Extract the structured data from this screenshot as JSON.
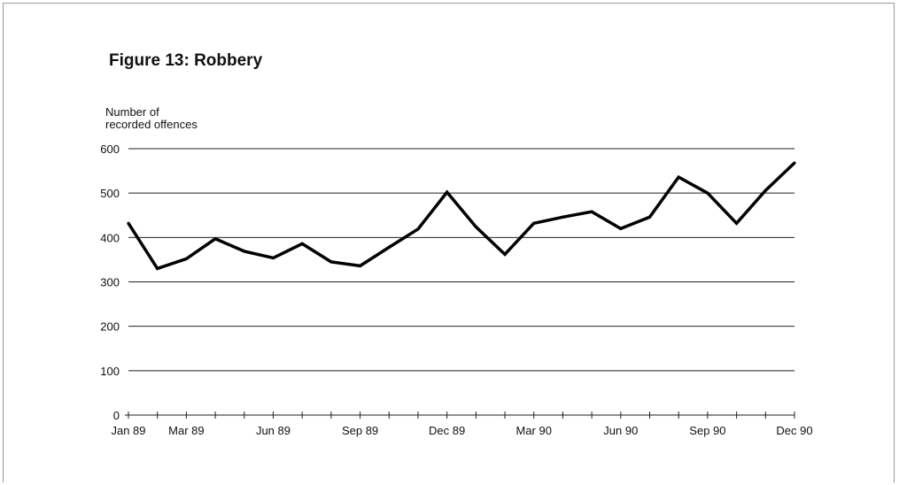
{
  "chart_data": {
    "type": "line",
    "title": "Figure 13:  Robbery",
    "ylabel_lines": [
      "Number of",
      "recorded offences"
    ],
    "xlabel": "",
    "ylim": [
      0,
      600
    ],
    "yticks": [
      0,
      100,
      200,
      300,
      400,
      500,
      600
    ],
    "grid": true,
    "x": [
      "Jan 89",
      "Feb 89",
      "Mar 89",
      "Apr 89",
      "May 89",
      "Jun 89",
      "Jul 89",
      "Aug 89",
      "Sep 89",
      "Oct 89",
      "Nov 89",
      "Dec 89",
      "Jan 90",
      "Feb 90",
      "Mar 90",
      "Apr 90",
      "May 90",
      "Jun 90",
      "Jul 90",
      "Aug 90",
      "Sep 90",
      "Oct 90",
      "Nov 90",
      "Dec 90"
    ],
    "xtick_labels": [
      {
        "index": 0,
        "label": "Jan 89"
      },
      {
        "index": 2,
        "label": "Mar 89"
      },
      {
        "index": 5,
        "label": "Jun 89"
      },
      {
        "index": 8,
        "label": "Sep 89"
      },
      {
        "index": 11,
        "label": "Dec 89"
      },
      {
        "index": 14,
        "label": "Mar 90"
      },
      {
        "index": 17,
        "label": "Jun 90"
      },
      {
        "index": 20,
        "label": "Sep 90"
      },
      {
        "index": 23,
        "label": "Dec 90"
      }
    ],
    "series": [
      {
        "values": [
          432,
          330,
          352,
          397,
          369,
          354,
          386,
          345,
          336,
          378,
          419,
          502,
          424,
          362,
          432,
          446,
          458,
          420,
          446,
          536,
          500,
          432,
          506,
          568
        ],
        "color": "#000000"
      }
    ]
  }
}
